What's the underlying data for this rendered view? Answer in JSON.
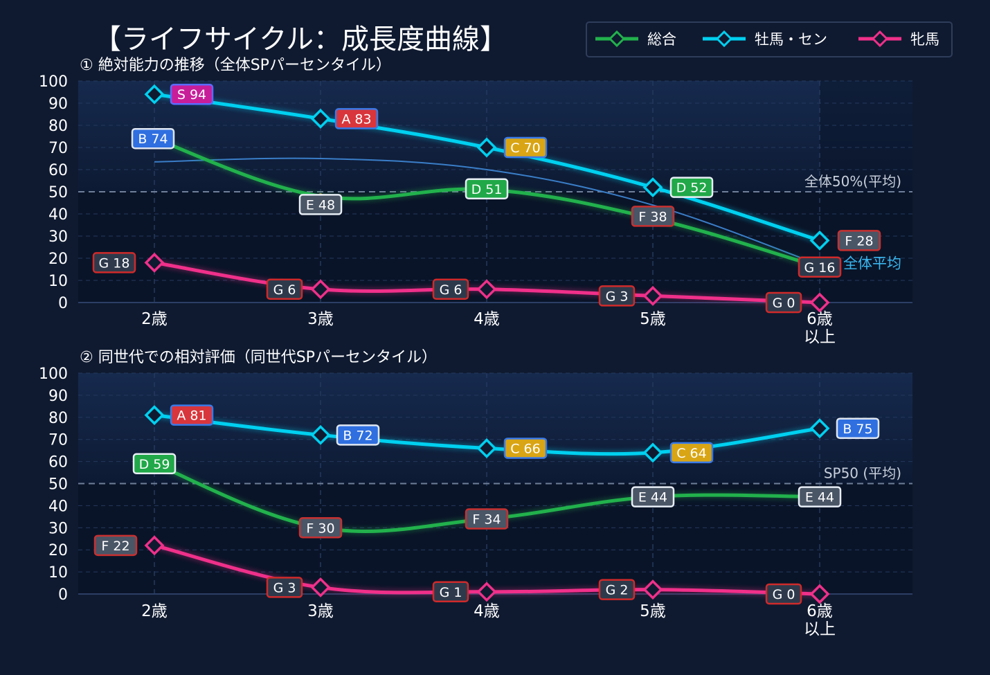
{
  "title": "【ライフサイクル：成長度曲線】",
  "legend": [
    {
      "name": "総合",
      "color": "#22b14c"
    },
    {
      "name": "牡馬・セン",
      "color": "#00d0f0"
    },
    {
      "name": "牝馬",
      "color": "#f0308a"
    }
  ],
  "chart_data": [
    {
      "type": "line",
      "subtitle": "① 絶対能力の推移（全体SPパーセンタイル）",
      "categories": [
        "2歳",
        "3歳",
        "4歳",
        "5歳",
        "6歳\n以上"
      ],
      "ylim": [
        0,
        100
      ],
      "yticks": [
        0,
        10,
        20,
        30,
        40,
        50,
        60,
        70,
        80,
        90,
        100
      ],
      "reference_line": {
        "value": 50,
        "label": "全体50%(平均)"
      },
      "average_line": {
        "label": "全体平均",
        "values": [
          63.5,
          65,
          60,
          44,
          17
        ]
      },
      "series": [
        {
          "name": "総合",
          "values": [
            74,
            48,
            51,
            38,
            16
          ],
          "labels": [
            "B 74",
            "E 48",
            "D 51",
            "F 38",
            "G 16"
          ]
        },
        {
          "name": "牡馬・セン",
          "values": [
            94,
            83,
            70,
            52,
            28
          ],
          "labels": [
            "S 94",
            "A 83",
            "C 70",
            "D 52",
            "F 28"
          ]
        },
        {
          "name": "牝馬",
          "values": [
            18,
            6,
            6,
            3,
            0
          ],
          "labels": [
            "G 18",
            "G 6",
            "G 6",
            "G 3",
            "G 0"
          ]
        }
      ]
    },
    {
      "type": "line",
      "subtitle": "② 同世代での相対評価（同世代SPパーセンタイル）",
      "categories": [
        "2歳",
        "3歳",
        "4歳",
        "5歳",
        "6歳\n以上"
      ],
      "ylim": [
        0,
        100
      ],
      "yticks": [
        0,
        10,
        20,
        30,
        40,
        50,
        60,
        70,
        80,
        90,
        100
      ],
      "reference_line": {
        "value": 50,
        "label": "SP50 (平均)"
      },
      "series": [
        {
          "name": "総合",
          "values": [
            59,
            30,
            34,
            44,
            44
          ],
          "labels": [
            "D 59",
            "F 30",
            "F 34",
            "E 44",
            "E 44"
          ]
        },
        {
          "name": "牡馬・セン",
          "values": [
            81,
            72,
            66,
            64,
            75
          ],
          "labels": [
            "A 81",
            "B 72",
            "C 66",
            "C 64",
            "B 75"
          ]
        },
        {
          "name": "牝馬",
          "values": [
            22,
            3,
            1,
            2,
            0
          ],
          "labels": [
            "F 22",
            "G 3",
            "G 1",
            "G 2",
            "G 0"
          ]
        }
      ]
    }
  ],
  "grade_colors": {
    "S": {
      "bg": "#c81e9a",
      "border": "#5b6bff"
    },
    "A": {
      "bg": "#d8363c",
      "border": "#3a7ae8"
    },
    "B": {
      "bg": "#2f6fe0",
      "border": "#dfe6f0"
    },
    "C": {
      "bg": "#d9a514",
      "border": "#3a7ae8"
    },
    "D": {
      "bg": "#21a848",
      "border": "#e8eef5"
    },
    "E": {
      "bg": "#4a5566",
      "border": "#e8eef5"
    },
    "F": {
      "bg": "#4a5566",
      "border": "#c83030"
    },
    "G": {
      "bg": "#2e3a4c",
      "border": "#d02a2a"
    }
  }
}
